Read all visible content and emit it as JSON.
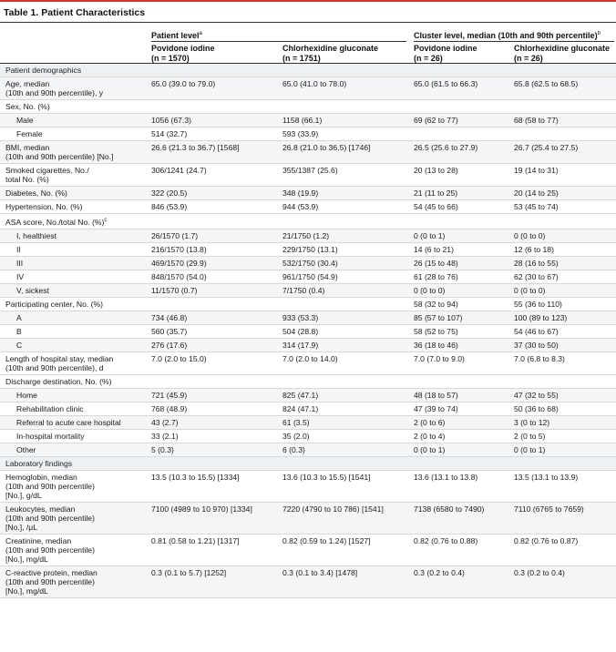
{
  "title": "Table 1. Patient Characteristics",
  "header": {
    "patient_level": "Patient level",
    "patient_level_sup": "a",
    "cluster_level": "Cluster level, median (10th and 90th percentile)",
    "cluster_level_sup": "b",
    "col1_name": "Povidone iodine",
    "col1_n": "(n = 1570)",
    "col2_name": "Chlorhexidine gluconate",
    "col2_n": "(n = 1751)",
    "col3_name": "Povidone iodine",
    "col3_n": "(n = 26)",
    "col4_name": "Chlorhexidine gluconate",
    "col4_n": "(n = 26)"
  },
  "rows": [
    {
      "type": "section",
      "label": "Patient demographics",
      "v": [
        "",
        "",
        "",
        ""
      ]
    },
    {
      "type": "main",
      "label": "Age, median\n(10th and 90th percentile), y",
      "v": [
        "65.0 (39.0 to 79.0)",
        "65.0 (41.0 to 78.0)",
        "65.0 (61.5 to 66.3)",
        "65.8 (62.5 to 68.5)"
      ]
    },
    {
      "type": "main",
      "label": "Sex, No. (%)",
      "v": [
        "",
        "",
        "",
        ""
      ]
    },
    {
      "type": "sub",
      "label": "Male",
      "v": [
        "1056 (67.3)",
        "1158 (66.1)",
        "69 (62 to 77)",
        "68 (58 to 77)"
      ]
    },
    {
      "type": "sub",
      "label": "Female",
      "v": [
        "514 (32.7)",
        "593 (33.9)",
        "",
        ""
      ]
    },
    {
      "type": "main",
      "label": "BMI, median\n(10th and 90th percentile) [No.]",
      "v": [
        "26.6 (21.3 to 36.7) [1568]",
        "26.8 (21.0 to 36.5) [1746]",
        "26.5 (25.6 to 27.9)",
        "26.7 (25.4 to 27.5)"
      ]
    },
    {
      "type": "main",
      "label": "Smoked cigarettes, No./\ntotal No. (%)",
      "v": [
        "306/1241 (24.7)",
        "355/1387 (25.6)",
        "20 (13 to 28)",
        "19 (14 to 31)"
      ]
    },
    {
      "type": "main",
      "label": "Diabetes, No. (%)",
      "v": [
        "322 (20.5)",
        "348 (19.9)",
        "21 (11 to 25)",
        "20 (14 to 25)"
      ]
    },
    {
      "type": "main",
      "label": "Hypertension, No. (%)",
      "v": [
        "846 (53.9)",
        "944 (53.9)",
        "54 (45 to 66)",
        "53 (45 to 74)"
      ]
    },
    {
      "type": "main",
      "label": "ASA score, No./total No. (%)",
      "sup": "c",
      "v": [
        "",
        "",
        "",
        ""
      ]
    },
    {
      "type": "sub",
      "label": "I, healthiest",
      "v": [
        "26/1570 (1.7)",
        "21/1750 (1.2)",
        "0 (0 to 1)",
        "0 (0 to 0)"
      ]
    },
    {
      "type": "sub",
      "label": "II",
      "v": [
        "216/1570 (13.8)",
        "229/1750 (13.1)",
        "14 (6 to 21)",
        "12 (6 to 18)"
      ]
    },
    {
      "type": "sub",
      "label": "III",
      "v": [
        "469/1570 (29.9)",
        "532/1750 (30.4)",
        "26 (15 to 48)",
        "28 (16 to 55)"
      ]
    },
    {
      "type": "sub",
      "label": "IV",
      "v": [
        "848/1570 (54.0)",
        "961/1750 (54.9)",
        "61 (28 to 76)",
        "62 (30 to 67)"
      ]
    },
    {
      "type": "sub",
      "label": "V, sickest",
      "v": [
        "11/1570 (0.7)",
        "7/1750 (0.4)",
        "0 (0 to 0)",
        "0 (0 to 0)"
      ]
    },
    {
      "type": "main",
      "label": "Participating center, No. (%)",
      "v": [
        "",
        "",
        "58 (32 to 94)",
        "55 (36 to 110)"
      ]
    },
    {
      "type": "sub",
      "label": "A",
      "v": [
        "734 (46.8)",
        "933 (53.3)",
        "85 (57 to 107)",
        "100 (89 to 123)"
      ]
    },
    {
      "type": "sub",
      "label": "B",
      "v": [
        "560 (35.7)",
        "504 (28.8)",
        "58 (52 to 75)",
        "54 (46 to 67)"
      ]
    },
    {
      "type": "sub",
      "label": "C",
      "v": [
        "276 (17.6)",
        "314 (17.9)",
        "36 (18 to 46)",
        "37 (30 to 50)"
      ]
    },
    {
      "type": "main",
      "label": "Length of hospital stay, median\n(10th and 90th percentile), d",
      "v": [
        "7.0 (2.0 to 15.0)",
        "7.0 (2.0 to 14.0)",
        "7.0 (7.0 to 9.0)",
        "7.0 (6.8 to 8.3)"
      ]
    },
    {
      "type": "main",
      "label": "Discharge destination, No. (%)",
      "v": [
        "",
        "",
        "",
        ""
      ]
    },
    {
      "type": "sub",
      "label": "Home",
      "v": [
        "721 (45.9)",
        "825 (47.1)",
        "48 (18 to 57)",
        "47 (32 to 55)"
      ]
    },
    {
      "type": "sub",
      "label": "Rehabilitation clinic",
      "v": [
        "768 (48.9)",
        "824 (47.1)",
        "47 (39 to 74)",
        "50 (36 to 68)"
      ]
    },
    {
      "type": "sub",
      "label": "Referral to acute care hospital",
      "v": [
        "43 (2.7)",
        "61 (3.5)",
        "2 (0 to 6)",
        "3 (0 to 12)"
      ]
    },
    {
      "type": "sub",
      "label": "In-hospital mortality",
      "v": [
        "33 (2.1)",
        "35 (2.0)",
        "2 (0 to 4)",
        "2 (0 to 5)"
      ]
    },
    {
      "type": "sub",
      "label": "Other",
      "v": [
        "5 (0.3)",
        "6 (0.3)",
        "0 (0 to 1)",
        "0 (0 to 1)"
      ]
    },
    {
      "type": "section",
      "label": "Laboratory findings",
      "v": [
        "",
        "",
        "",
        ""
      ]
    },
    {
      "type": "main",
      "label": "Hemoglobin, median\n(10th and 90th percentile)\n[No.], g/dL",
      "v": [
        "13.5 (10.3 to 15.5) [1334]",
        "13.6 (10.3 to 15.5) [1541]",
        "13.6 (13.1 to 13.8)",
        "13.5 (13.1 to 13.9)"
      ]
    },
    {
      "type": "main",
      "label": "Leukocytes, median\n(10th and 90th percentile)\n[No.], /μL",
      "v": [
        "7100 (4989 to 10 970) [1334]",
        "7220 (4790 to 10 786) [1541]",
        "7138 (6580 to 7490)",
        "7110 (6765 to 7659)"
      ]
    },
    {
      "type": "main",
      "label": "Creatinine, median\n(10th and 90th percentile)\n[No.], mg/dL",
      "v": [
        "0.81 (0.58 to 1.21) [1317]",
        "0.82 (0.59 to 1.24) [1527]",
        "0.82 (0.76 to 0.88)",
        "0.82 (0.76 to 0.87)"
      ]
    },
    {
      "type": "main",
      "label": "C-reactive protein, median\n(10th and 90th percentile)\n[No.], mg/dL",
      "v": [
        "0.3 (0.1 to 5.7) [1252]",
        "0.3 (0.1 to 3.4) [1478]",
        "0.3 (0.2 to 0.4)",
        "0.3 (0.2 to 0.4)"
      ]
    }
  ]
}
